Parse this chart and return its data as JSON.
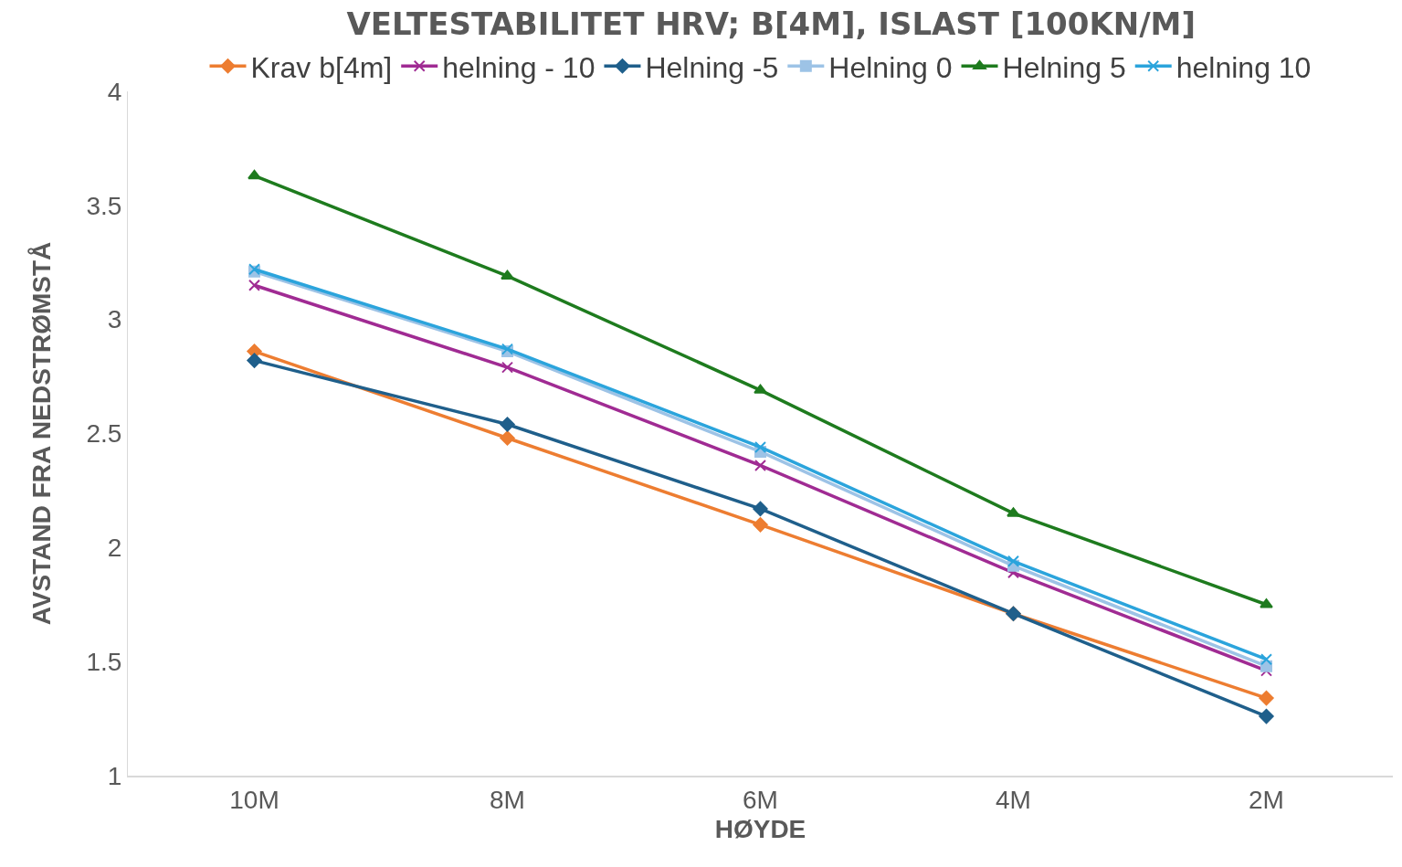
{
  "chart_data": {
    "type": "line",
    "title": "VELTESTABILITET HRV; B[4M], ISLAST [100KN/M]",
    "xlabel": "HØYDE",
    "ylabel": "AVSTAND FRA NEDSTRØMSTÅ",
    "categories": [
      "10M",
      "8M",
      "6M",
      "4M",
      "2M"
    ],
    "series": [
      {
        "name": "Krav b[4m]",
        "color": "#ed7d31",
        "marker": "diamond",
        "values": [
          2.86,
          2.48,
          2.1,
          1.71,
          1.34
        ]
      },
      {
        "name": "helning - 10",
        "color": "#a02b93",
        "marker": "cross",
        "values": [
          3.15,
          2.79,
          2.36,
          1.89,
          1.46
        ]
      },
      {
        "name": "Helning -5",
        "color": "#1f5f8b",
        "marker": "diamond",
        "values": [
          2.82,
          2.54,
          2.17,
          1.71,
          1.26
        ]
      },
      {
        "name": "Helning 0",
        "color": "#9dc3e6",
        "marker": "square",
        "values": [
          3.21,
          2.86,
          2.42,
          1.92,
          1.48
        ]
      },
      {
        "name": "Helning 5",
        "color": "#1e7b1e",
        "marker": "triangle",
        "values": [
          3.63,
          3.19,
          2.69,
          2.15,
          1.75
        ]
      },
      {
        "name": "helning 10",
        "color": "#2ba4dc",
        "marker": "cross",
        "values": [
          3.22,
          2.87,
          2.44,
          1.94,
          1.51
        ]
      }
    ],
    "ylim": [
      1,
      4
    ],
    "yticks": [
      1,
      1.5,
      2,
      2.5,
      3,
      3.5,
      4
    ],
    "grid": false,
    "legend": "top",
    "line_style": "solid"
  }
}
